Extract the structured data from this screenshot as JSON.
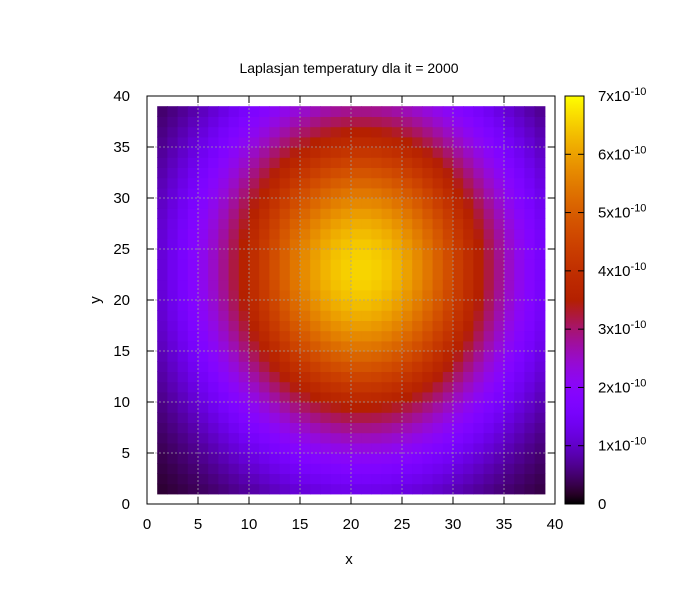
{
  "chart_data": {
    "type": "heatmap",
    "title": "Laplasjan temperatury dla it = 2000",
    "xlabel": "x",
    "ylabel": "y",
    "xlim": [
      0,
      40
    ],
    "ylim": [
      0,
      40
    ],
    "x_ticks": [
      "0",
      "5",
      "10",
      "15",
      "20",
      "25",
      "30",
      "35",
      "40"
    ],
    "y_ticks": [
      "0",
      "5",
      "10",
      "15",
      "20",
      "25",
      "30",
      "35",
      "40"
    ],
    "grid_x": [
      1,
      39
    ],
    "grid_y": [
      1,
      39
    ],
    "cell_size": 1,
    "peak": {
      "x": 21,
      "y": 23,
      "value": 6.6e-10
    },
    "zlim": [
      0,
      7e-10
    ],
    "colorbar": {
      "ticks": [
        {
          "value": 0,
          "mantissa": "0",
          "exp": ""
        },
        {
          "value": 1e-10,
          "mantissa": "1x10",
          "exp": "-10"
        },
        {
          "value": 2e-10,
          "mantissa": "2x10",
          "exp": "-10"
        },
        {
          "value": 3e-10,
          "mantissa": "3x10",
          "exp": "-10"
        },
        {
          "value": 4e-10,
          "mantissa": "4x10",
          "exp": "-10"
        },
        {
          "value": 5e-10,
          "mantissa": "5x10",
          "exp": "-10"
        },
        {
          "value": 6e-10,
          "mantissa": "6x10",
          "exp": "-10"
        },
        {
          "value": 7e-10,
          "mantissa": "7x10",
          "exp": "-10"
        }
      ]
    },
    "palette": "gnuplot",
    "grid": true,
    "legend": "none"
  }
}
